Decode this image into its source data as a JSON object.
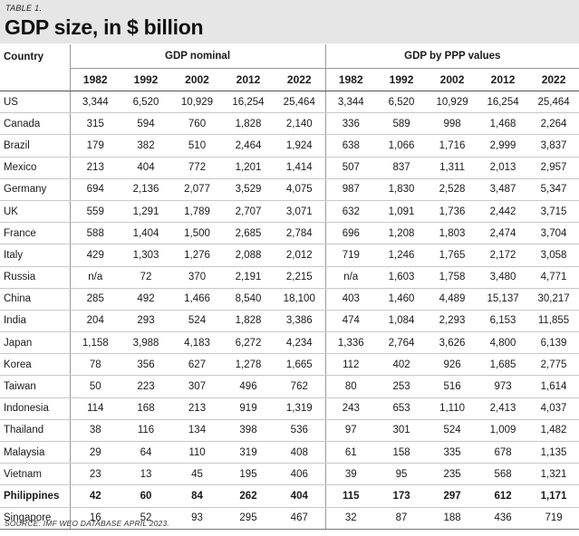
{
  "table_label": "TABLE 1.",
  "title": "GDP size, in $ billion",
  "headers": {
    "country": "Country",
    "group_nominal": "GDP nominal",
    "group_ppp": "GDP by PPP values",
    "years": [
      "1982",
      "1992",
      "2002",
      "2012",
      "2022"
    ]
  },
  "rows": [
    {
      "country": "US",
      "bold": false,
      "nominal": [
        "3,344",
        "6,520",
        "10,929",
        "16,254",
        "25,464"
      ],
      "ppp": [
        "3,344",
        "6,520",
        "10,929",
        "16,254",
        "25,464"
      ]
    },
    {
      "country": "Canada",
      "bold": false,
      "nominal": [
        "315",
        "594",
        "760",
        "1,828",
        "2,140"
      ],
      "ppp": [
        "336",
        "589",
        "998",
        "1,468",
        "2,264"
      ]
    },
    {
      "country": "Brazil",
      "bold": false,
      "nominal": [
        "179",
        "382",
        "510",
        "2,464",
        "1,924"
      ],
      "ppp": [
        "638",
        "1,066",
        "1,716",
        "2,999",
        "3,837"
      ]
    },
    {
      "country": "Mexico",
      "bold": false,
      "nominal": [
        "213",
        "404",
        "772",
        "1,201",
        "1,414"
      ],
      "ppp": [
        "507",
        "837",
        "1,311",
        "2,013",
        "2,957"
      ]
    },
    {
      "country": "Germany",
      "bold": false,
      "nominal": [
        "694",
        "2,136",
        "2,077",
        "3,529",
        "4,075"
      ],
      "ppp": [
        "987",
        "1,830",
        "2,528",
        "3,487",
        "5,347"
      ]
    },
    {
      "country": "UK",
      "bold": false,
      "nominal": [
        "559",
        "1,291",
        "1,789",
        "2,707",
        "3,071"
      ],
      "ppp": [
        "632",
        "1,091",
        "1,736",
        "2,442",
        "3,715"
      ]
    },
    {
      "country": "France",
      "bold": false,
      "nominal": [
        "588",
        "1,404",
        "1,500",
        "2,685",
        "2,784"
      ],
      "ppp": [
        "696",
        "1,208",
        "1,803",
        "2,474",
        "3,704"
      ]
    },
    {
      "country": "Italy",
      "bold": false,
      "nominal": [
        "429",
        "1,303",
        "1,276",
        "2,088",
        "2,012"
      ],
      "ppp": [
        "719",
        "1,246",
        "1,765",
        "2,172",
        "3,058"
      ]
    },
    {
      "country": "Russia",
      "bold": false,
      "nominal": [
        "n/a",
        "72",
        "370",
        "2,191",
        "2,215"
      ],
      "ppp": [
        "n/a",
        "1,603",
        "1,758",
        "3,480",
        "4,771"
      ]
    },
    {
      "country": "China",
      "bold": false,
      "nominal": [
        "285",
        "492",
        "1,466",
        "8,540",
        "18,100"
      ],
      "ppp": [
        "403",
        "1,460",
        "4,489",
        "15,137",
        "30,217"
      ]
    },
    {
      "country": "India",
      "bold": false,
      "nominal": [
        "204",
        "293",
        "524",
        "1,828",
        "3,386"
      ],
      "ppp": [
        "474",
        "1,084",
        "2,293",
        "6,153",
        "11,855"
      ]
    },
    {
      "country": "Japan",
      "bold": false,
      "nominal": [
        "1,158",
        "3,988",
        "4,183",
        "6,272",
        "4,234"
      ],
      "ppp": [
        "1,336",
        "2,764",
        "3,626",
        "4,800",
        "6,139"
      ]
    },
    {
      "country": "Korea",
      "bold": false,
      "nominal": [
        "78",
        "356",
        "627",
        "1,278",
        "1,665"
      ],
      "ppp": [
        "112",
        "402",
        "926",
        "1,685",
        "2,775"
      ]
    },
    {
      "country": "Taiwan",
      "bold": false,
      "nominal": [
        "50",
        "223",
        "307",
        "496",
        "762"
      ],
      "ppp": [
        "80",
        "253",
        "516",
        "973",
        "1,614"
      ]
    },
    {
      "country": "Indonesia",
      "bold": false,
      "nominal": [
        "114",
        "168",
        "213",
        "919",
        "1,319"
      ],
      "ppp": [
        "243",
        "653",
        "1,110",
        "2,413",
        "4,037"
      ]
    },
    {
      "country": "Thailand",
      "bold": false,
      "nominal": [
        "38",
        "116",
        "134",
        "398",
        "536"
      ],
      "ppp": [
        "97",
        "301",
        "524",
        "1,009",
        "1,482"
      ]
    },
    {
      "country": "Malaysia",
      "bold": false,
      "nominal": [
        "29",
        "64",
        "110",
        "319",
        "408"
      ],
      "ppp": [
        "61",
        "158",
        "335",
        "678",
        "1,135"
      ]
    },
    {
      "country": "Vietnam",
      "bold": false,
      "nominal": [
        "23",
        "13",
        "45",
        "195",
        "406"
      ],
      "ppp": [
        "39",
        "95",
        "235",
        "568",
        "1,321"
      ]
    },
    {
      "country": "Philippines",
      "bold": true,
      "nominal": [
        "42",
        "60",
        "84",
        "262",
        "404"
      ],
      "ppp": [
        "115",
        "173",
        "297",
        "612",
        "1,171"
      ]
    },
    {
      "country": "Singapore",
      "bold": false,
      "nominal": [
        "16",
        "52",
        "93",
        "295",
        "467"
      ],
      "ppp": [
        "32",
        "87",
        "188",
        "436",
        "719"
      ]
    }
  ],
  "source": "SOURCE: IMF WEO DATABASE APRIL 2023."
}
